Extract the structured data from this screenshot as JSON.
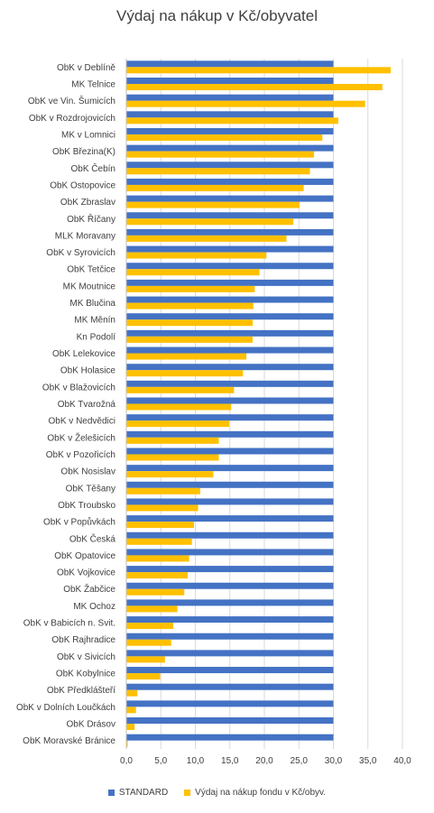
{
  "chart_data": {
    "type": "bar",
    "orientation": "horizontal",
    "title": "Výdaj na nákup v Kč/obyvatel",
    "categories": [
      "ObK v Deblíně",
      "MK Telnice",
      "ObK ve Vin. Šumicích",
      "ObK v Rozdrojovicích",
      "MK v Lomnici",
      "ObK Březina(K)",
      "ObK Čebín",
      "ObK Ostopovice",
      "ObK Zbraslav",
      "ObK Říčany",
      "MLK Moravany",
      "ObK v Syrovicích",
      "ObK Tetčice",
      "MK Moutnice",
      "MK Blučina",
      "MK Měnín",
      "Kn Podolí",
      "ObK Lelekovice",
      "ObK Holasice",
      "ObK v Blažovicích",
      "ObK Tvarožná",
      "ObK v Nedvědici",
      "ObK v Želešicích",
      "ObK v Pozořicích",
      "ObK Nosislav",
      "ObK Těšany",
      "ObK Troubsko",
      "ObK v Popůvkách",
      "ObK Česká",
      "ObK Opatovice",
      "ObK Vojkovice",
      "ObK Žabčice",
      "MK Ochoz",
      "ObK v Babicích n. Svit.",
      "ObK Rajhradice",
      "ObK v Sivicích",
      "ObK Kobylnice",
      "ObK Předklášteří",
      "ObK v Dolních Loučkách",
      "ObK Drásov",
      "ObK Moravské Bránice"
    ],
    "series": [
      {
        "name": "STANDARD",
        "color": "#4472C4",
        "values": [
          30,
          30,
          30,
          30,
          30,
          30,
          30,
          30,
          30,
          30,
          30,
          30,
          30,
          30,
          30,
          30,
          30,
          30,
          30,
          30,
          30,
          30,
          30,
          30,
          30,
          30,
          30,
          30,
          30,
          30,
          30,
          30,
          30,
          30,
          30,
          30,
          30,
          30,
          30,
          30,
          30
        ]
      },
      {
        "name": "Výdaj na nákup  fondu v Kč/obyv.",
        "color": "#FFC000",
        "values": [
          38.3,
          37.1,
          34.6,
          30.7,
          28.4,
          27.2,
          26.6,
          25.7,
          25.1,
          24.2,
          23.2,
          20.3,
          19.3,
          18.6,
          18.4,
          18.3,
          18.3,
          17.4,
          16.9,
          15.6,
          15.2,
          14.9,
          13.4,
          13.4,
          12.6,
          10.7,
          10.4,
          9.8,
          9.5,
          9.1,
          8.9,
          8.4,
          7.4,
          6.8,
          6.5,
          5.6,
          4.9,
          1.6,
          1.4,
          1.2,
          0.2
        ]
      }
    ],
    "xlim": [
      0,
      40
    ],
    "xticks": [
      "0,0",
      "5,0",
      "10,0",
      "15,0",
      "20,0",
      "25,0",
      "30,0",
      "35,0",
      "40,0"
    ],
    "grid": true,
    "legend_position": "bottom"
  }
}
